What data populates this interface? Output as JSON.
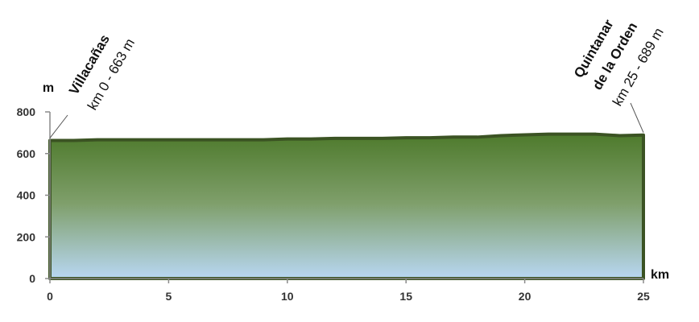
{
  "chart_data": {
    "type": "area",
    "x_unit": "km",
    "y_unit": "m",
    "xlim": [
      0,
      25
    ],
    "ylim": [
      0,
      800
    ],
    "x_ticks": [
      0,
      5,
      10,
      15,
      20,
      25
    ],
    "y_ticks": [
      0,
      200,
      400,
      600,
      800
    ],
    "x": [
      0,
      1,
      2,
      3,
      4,
      5,
      6,
      7,
      8,
      9,
      10,
      11,
      12,
      13,
      14,
      15,
      16,
      17,
      18,
      19,
      20,
      21,
      22,
      23,
      24,
      25
    ],
    "y": [
      663,
      663,
      666,
      666,
      666,
      666,
      666,
      666,
      666,
      666,
      670,
      670,
      673,
      673,
      673,
      676,
      676,
      679,
      679,
      686,
      690,
      693,
      693,
      693,
      686,
      689
    ],
    "grid": false,
    "annotations": [
      {
        "name": "Villacañas",
        "km_label": "km 0 - 663 m",
        "x": 0,
        "y": 663
      },
      {
        "name_lines": [
          "Quintanar",
          "de la Orden"
        ],
        "km_label": "km 25 - 689 m",
        "x": 25,
        "y": 689
      }
    ],
    "colors": {
      "fill_top": "#4e7a2c",
      "fill_mid": "#7f9f6b",
      "fill_bottom": "#b8d7f2",
      "outline": "#3b5323"
    }
  }
}
